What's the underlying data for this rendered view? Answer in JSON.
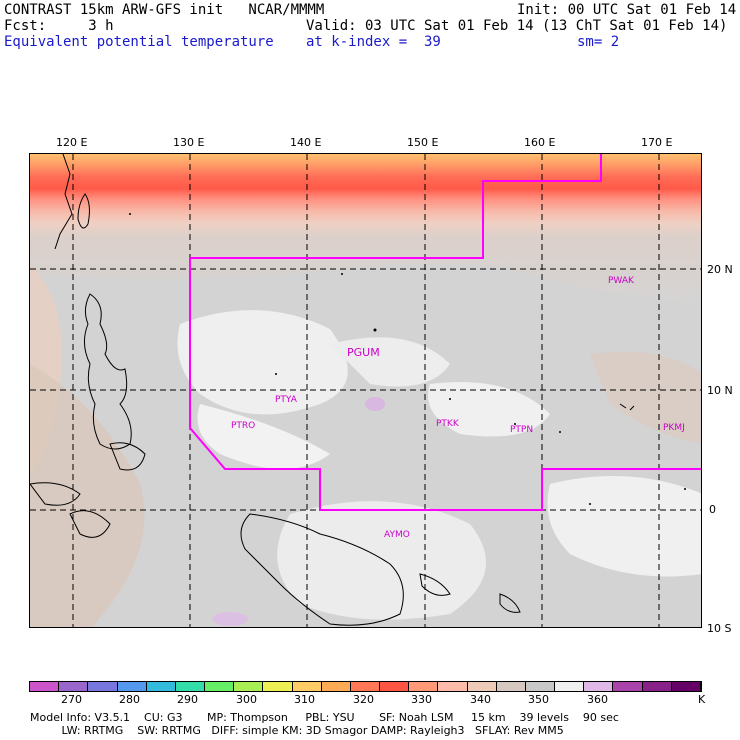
{
  "header": {
    "line1_left": "CONTRAST 15km ARW-GFS init   NCAR/MMMM",
    "line1_right": "Init: 00 UTC Sat 01 Feb 14",
    "line2_left": "Fcst:     3 h",
    "line2_right": "Valid: 03 UTC Sat 01 Feb 14 (13 ChT Sat 01 Feb 14)",
    "line3_left": "Equivalent potential temperature",
    "line3_mid": "at k-index =  39",
    "line3_right": "sm= 2"
  },
  "map": {
    "lon_labels": [
      "120 E",
      "130 E",
      "140 E",
      "150 E",
      "160 E",
      "170 E"
    ],
    "lat_labels": [
      "20 N",
      "10 N",
      "0",
      "10 S"
    ],
    "stations": [
      {
        "id": "PGUM"
      },
      {
        "id": "PTYA"
      },
      {
        "id": "PTRO"
      },
      {
        "id": "PTKK"
      },
      {
        "id": "PTPN"
      },
      {
        "id": "PKMJ"
      },
      {
        "id": "PWAK"
      },
      {
        "id": "AYMO"
      }
    ],
    "colors": {
      "domain_outline": "#ff00ff",
      "grid": "#000000"
    }
  },
  "colorbar": {
    "unit": "K",
    "tick_labels": [
      "270",
      "280",
      "290",
      "300",
      "310",
      "320",
      "330",
      "340",
      "350",
      "360"
    ],
    "colors": [
      "#cc55cc",
      "#9966cc",
      "#7777dd",
      "#5599ee",
      "#33bbdd",
      "#33ddaa",
      "#66ee66",
      "#aaee55",
      "#eeee55",
      "#ffcc66",
      "#ffaa55",
      "#ff7755",
      "#ff5544",
      "#ff9977",
      "#ffbbaa",
      "#eecbb8",
      "#d6c8c0",
      "#c8c8c8",
      "#f0f0f0",
      "#e0b8e8",
      "#aa44aa",
      "#882288",
      "#660066"
    ]
  },
  "footer": {
    "line1": "Model Info: V3.5.1    CU: G3       MP: Thompson     PBL: YSU       SF: Noah LSM     15 km    39 levels    90 sec",
    "line2": "         LW: RRTMG    SW: RRTMG   DIFF: simple KM: 3D Smagor DAMP: Rayleigh3   SFLAY: Rev MM5"
  }
}
